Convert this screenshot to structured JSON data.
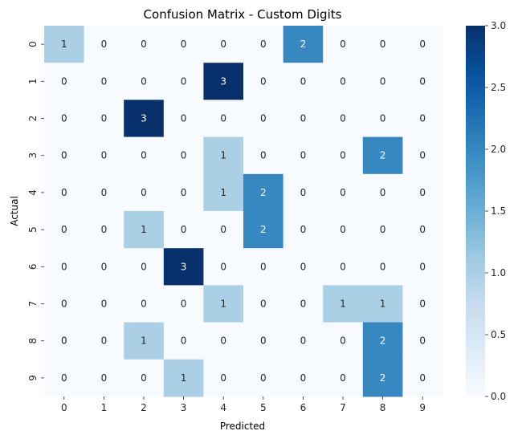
{
  "chart_data": {
    "type": "heatmap",
    "title": "Confusion Matrix - Custom Digits",
    "xlabel": "Predicted",
    "ylabel": "Actual",
    "x_categories": [
      "0",
      "1",
      "2",
      "3",
      "4",
      "5",
      "6",
      "7",
      "8",
      "9"
    ],
    "y_categories": [
      "0",
      "1",
      "2",
      "3",
      "4",
      "5",
      "6",
      "7",
      "8",
      "9"
    ],
    "values": [
      [
        1,
        0,
        0,
        0,
        0,
        0,
        2,
        0,
        0,
        0
      ],
      [
        0,
        0,
        0,
        0,
        3,
        0,
        0,
        0,
        0,
        0
      ],
      [
        0,
        0,
        3,
        0,
        0,
        0,
        0,
        0,
        0,
        0
      ],
      [
        0,
        0,
        0,
        0,
        1,
        0,
        0,
        0,
        2,
        0
      ],
      [
        0,
        0,
        0,
        0,
        1,
        2,
        0,
        0,
        0,
        0
      ],
      [
        0,
        0,
        1,
        0,
        0,
        2,
        0,
        0,
        0,
        0
      ],
      [
        0,
        0,
        0,
        3,
        0,
        0,
        0,
        0,
        0,
        0
      ],
      [
        0,
        0,
        0,
        0,
        1,
        0,
        0,
        1,
        1,
        0
      ],
      [
        0,
        0,
        1,
        0,
        0,
        0,
        0,
        0,
        2,
        0
      ],
      [
        0,
        0,
        0,
        1,
        0,
        0,
        0,
        0,
        2,
        0
      ]
    ],
    "value_range": [
      0,
      3
    ],
    "colormap": "Blues",
    "colorbar_ticks": [
      "0.0",
      "0.5",
      "1.0",
      "1.5",
      "2.0",
      "2.5",
      "3.0"
    ],
    "annotations": true,
    "grid": false
  }
}
